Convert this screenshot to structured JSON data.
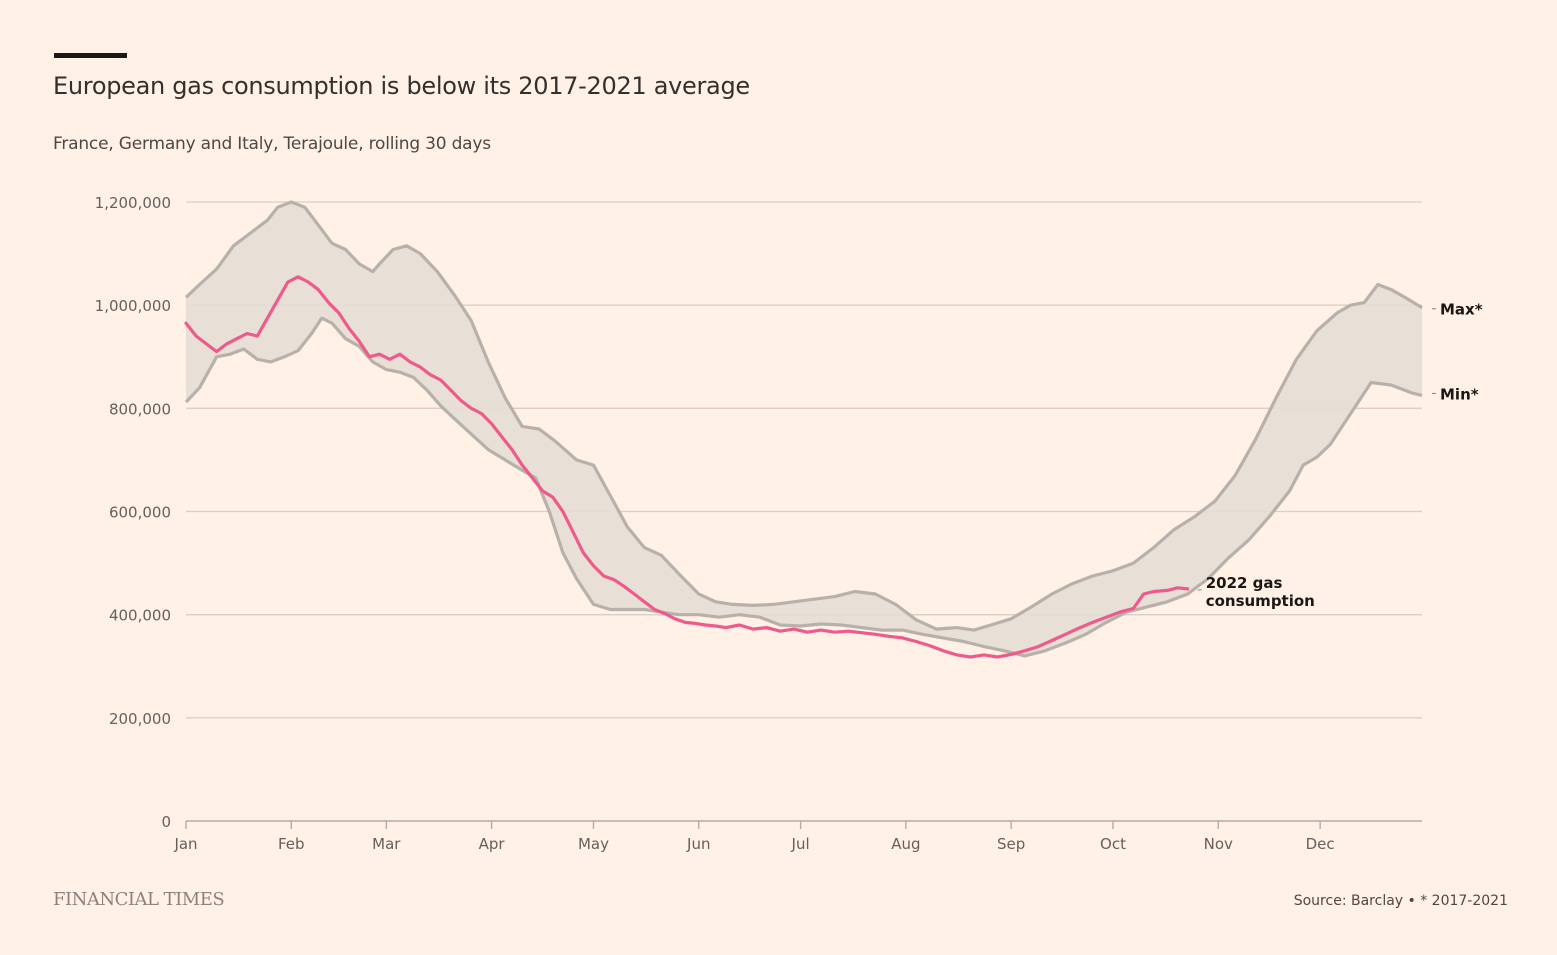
{
  "header": {
    "title": "European gas consumption is below its 2017-2021 average",
    "subtitle": "France, Germany and Italy, Terajoule, rolling 30 days"
  },
  "footer": {
    "brand": "FINANCIAL TIMES",
    "source": "Source: Barclay • * 2017-2021"
  },
  "colors": {
    "background": "#fff1e5",
    "band_fill": "#e5ddd5",
    "band_line": "#b8b1ab",
    "line_2022": "#ee5a8b",
    "grid": "#d9cfc6",
    "axis": "#b3aca6"
  },
  "chart_data": {
    "type": "area",
    "title": "European gas consumption is below its 2017-2021 average",
    "subtitle": "France, Germany and Italy, Terajoule, rolling 30 days",
    "xlabel": "",
    "ylabel": "Terajoule",
    "x_unit": "day of year",
    "xlim": [
      1,
      365
    ],
    "ylim": [
      0,
      1200000
    ],
    "grid": true,
    "yticks": [
      0,
      200000,
      400000,
      600000,
      800000,
      1000000,
      1200000
    ],
    "ytick_labels": [
      "0",
      "200,000",
      "400,000",
      "600,000",
      "800,000",
      "1,000,000",
      "1,200,000"
    ],
    "xticks": [
      1,
      32,
      60,
      91,
      121,
      152,
      182,
      213,
      244,
      274,
      305,
      335
    ],
    "xtick_labels": [
      "Jan",
      "Feb",
      "Mar",
      "Apr",
      "May",
      "Jun",
      "Jul",
      "Aug",
      "Sep",
      "Oct",
      "Nov",
      "Dec"
    ],
    "series": [
      {
        "name": "Max*",
        "label": "Max*",
        "x": [
          1,
          5,
          10,
          15,
          20,
          25,
          28,
          32,
          36,
          40,
          44,
          48,
          52,
          56,
          58,
          62,
          66,
          70,
          75,
          80,
          85,
          90,
          95,
          100,
          105,
          110,
          116,
          121,
          126,
          131,
          136,
          141,
          146,
          152,
          157,
          162,
          168,
          174,
          180,
          186,
          192,
          198,
          204,
          210,
          216,
          222,
          228,
          233,
          238,
          244,
          250,
          256,
          262,
          268,
          274,
          280,
          286,
          292,
          298,
          304,
          310,
          316,
          322,
          328,
          334,
          340,
          344,
          348,
          352,
          356,
          360,
          365
        ],
        "values": [
          1015000,
          1040000,
          1070000,
          1115000,
          1140000,
          1165000,
          1190000,
          1200000,
          1190000,
          1155000,
          1120000,
          1108000,
          1080000,
          1065000,
          1080000,
          1108000,
          1115000,
          1100000,
          1065000,
          1020000,
          970000,
          890000,
          820000,
          765000,
          760000,
          735000,
          700000,
          690000,
          630000,
          570000,
          530000,
          515000,
          480000,
          440000,
          425000,
          420000,
          418000,
          420000,
          425000,
          430000,
          435000,
          445000,
          440000,
          420000,
          390000,
          372000,
          375000,
          370000,
          380000,
          392000,
          415000,
          440000,
          460000,
          475000,
          485000,
          500000,
          530000,
          565000,
          590000,
          620000,
          670000,
          740000,
          820000,
          895000,
          950000,
          985000,
          1000000,
          1005000,
          1040000,
          1030000,
          1015000,
          995000
        ]
      },
      {
        "name": "Min*",
        "label": "Min*",
        "x": [
          1,
          5,
          10,
          14,
          18,
          22,
          26,
          30,
          34,
          38,
          41,
          44,
          48,
          52,
          56,
          60,
          64,
          68,
          72,
          76,
          80,
          85,
          90,
          95,
          100,
          104,
          108,
          112,
          116,
          121,
          126,
          131,
          136,
          141,
          146,
          152,
          158,
          164,
          170,
          176,
          182,
          188,
          194,
          200,
          206,
          212,
          218,
          224,
          230,
          236,
          242,
          248,
          254,
          260,
          266,
          272,
          278,
          284,
          290,
          296,
          302,
          308,
          314,
          320,
          326,
          330,
          334,
          338,
          344,
          350,
          356,
          362,
          365
        ],
        "values": [
          812000,
          840000,
          900000,
          905000,
          915000,
          895000,
          890000,
          900000,
          912000,
          945000,
          975000,
          965000,
          935000,
          920000,
          890000,
          875000,
          870000,
          860000,
          835000,
          805000,
          780000,
          750000,
          720000,
          700000,
          680000,
          665000,
          600000,
          520000,
          470000,
          420000,
          410000,
          410000,
          410000,
          405000,
          400000,
          400000,
          395000,
          400000,
          395000,
          380000,
          378000,
          382000,
          380000,
          375000,
          370000,
          370000,
          362000,
          355000,
          348000,
          338000,
          330000,
          320000,
          330000,
          345000,
          362000,
          385000,
          405000,
          415000,
          425000,
          440000,
          470000,
          510000,
          545000,
          590000,
          640000,
          690000,
          705000,
          730000,
          790000,
          850000,
          845000,
          830000,
          825000
        ]
      },
      {
        "name": "2022 gas consumption",
        "label": "2022 gas consumption",
        "x": [
          1,
          4,
          7,
          10,
          13,
          16,
          19,
          22,
          25,
          28,
          31,
          34,
          37,
          40,
          43,
          46,
          49,
          52,
          55,
          58,
          61,
          64,
          67,
          70,
          73,
          76,
          79,
          82,
          85,
          88,
          91,
          94,
          97,
          100,
          103,
          106,
          109,
          112,
          115,
          118,
          121,
          124,
          127,
          130,
          133,
          136,
          139,
          142,
          145,
          148,
          151,
          154,
          157,
          160,
          164,
          168,
          172,
          176,
          180,
          184,
          188,
          192,
          196,
          200,
          204,
          208,
          212,
          216,
          220,
          224,
          228,
          232,
          236,
          240,
          244,
          248,
          252,
          256,
          260,
          264,
          268,
          272,
          276,
          280,
          283,
          286,
          290,
          293,
          296
        ],
        "values": [
          965000,
          940000,
          925000,
          910000,
          925000,
          935000,
          945000,
          940000,
          975000,
          1010000,
          1045000,
          1055000,
          1045000,
          1030000,
          1005000,
          985000,
          955000,
          930000,
          900000,
          905000,
          895000,
          905000,
          890000,
          880000,
          865000,
          855000,
          835000,
          815000,
          800000,
          790000,
          770000,
          745000,
          720000,
          690000,
          665000,
          640000,
          628000,
          600000,
          560000,
          520000,
          495000,
          475000,
          468000,
          455000,
          440000,
          425000,
          410000,
          402000,
          392000,
          385000,
          383000,
          380000,
          378000,
          375000,
          380000,
          372000,
          375000,
          368000,
          372000,
          366000,
          370000,
          366000,
          368000,
          365000,
          362000,
          358000,
          355000,
          348000,
          340000,
          330000,
          322000,
          318000,
          322000,
          318000,
          323000,
          330000,
          338000,
          350000,
          362000,
          374000,
          385000,
          395000,
          405000,
          412000,
          440000,
          445000,
          447000,
          452000,
          450000
        ]
      }
    ],
    "annotations": [
      {
        "text": "Max*",
        "series": "Max*",
        "position": "right end"
      },
      {
        "text": "Min*",
        "series": "Min*",
        "position": "right end"
      },
      {
        "text": "2022 gas consumption",
        "series": "2022 gas consumption",
        "position": "line end"
      }
    ],
    "legend": "inline labels at line ends (right)",
    "footnote": "* 2017-2021",
    "source": "Source: Barclay"
  }
}
